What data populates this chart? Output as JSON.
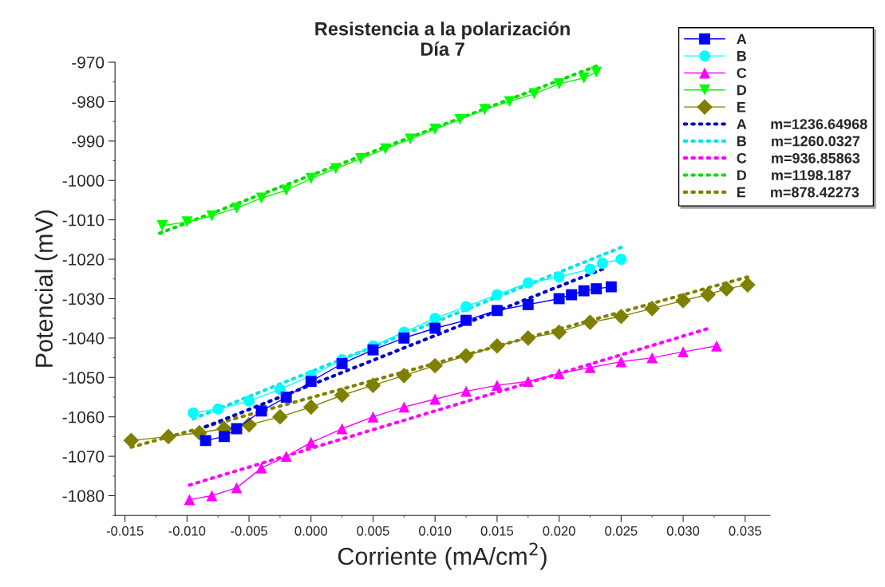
{
  "chart_data": {
    "type": "line",
    "title": "Resistencia a la polarización\nDía 7",
    "xlabel": "Corriente (mA/cm$^{2}$)",
    "ylabel": "Potencial (mV)",
    "xlim": [
      -0.0158,
      0.037
    ],
    "ylim": [
      -1085,
      -970
    ],
    "xticks": [
      {
        "value": -0.015,
        "label": "-0.015"
      },
      {
        "value": -0.01,
        "label": "-0.010"
      },
      {
        "value": -0.005,
        "label": "-0.005"
      },
      {
        "value": 0.0,
        "label": "0.000"
      },
      {
        "value": 0.005,
        "label": "0.005"
      },
      {
        "value": 0.01,
        "label": "0.010"
      },
      {
        "value": 0.015,
        "label": "0.015"
      },
      {
        "value": 0.02,
        "label": "0.020"
      },
      {
        "value": 0.025,
        "label": "0.025"
      },
      {
        "value": 0.03,
        "label": "0.030"
      },
      {
        "value": 0.035,
        "label": "0.035"
      }
    ],
    "yticks": [
      -970,
      -980,
      -990,
      -1000,
      -1010,
      -1020,
      -1030,
      -1040,
      -1050,
      -1060,
      -1070,
      -1080
    ],
    "grid": false,
    "legend": "top right",
    "line_style": "solid",
    "series": [
      {
        "name": "A",
        "color": "#0000ff",
        "marker": "square",
        "x": [
          -0.0085,
          -0.007,
          -0.006,
          -0.004,
          -0.002,
          0.0,
          0.0025,
          0.005,
          0.0075,
          0.01,
          0.0125,
          0.015,
          0.0175,
          0.02,
          0.021,
          0.022,
          0.023,
          0.0242
        ],
        "values": [
          -1066,
          -1065,
          -1063,
          -1058.5,
          -1055,
          -1051,
          -1046.5,
          -1043,
          -1040,
          -1037.5,
          -1035.5,
          -1033,
          -1031.5,
          -1030,
          -1029,
          -1028,
          -1027.5,
          -1027
        ]
      },
      {
        "name": "B",
        "color": "#00ffff",
        "marker": "circle",
        "x": [
          -0.0095,
          -0.0075,
          -0.005,
          -0.0025,
          0.0,
          0.0025,
          0.005,
          0.0075,
          0.01,
          0.0125,
          0.015,
          0.0175,
          0.02,
          0.0225,
          0.0235,
          0.025
        ],
        "values": [
          -1059,
          -1058,
          -1056,
          -1053,
          -1049.5,
          -1045.5,
          -1042,
          -1038.5,
          -1035,
          -1032,
          -1029,
          -1026,
          -1024.5,
          -1022.5,
          -1021,
          -1020
        ]
      },
      {
        "name": "C",
        "color": "#ff00ff",
        "marker": "triangle",
        "x": [
          -0.0098,
          -0.008,
          -0.006,
          -0.004,
          -0.002,
          0.0,
          0.0025,
          0.005,
          0.0075,
          0.01,
          0.0125,
          0.015,
          0.0175,
          0.02,
          0.0225,
          0.025,
          0.0275,
          0.03,
          0.0327
        ],
        "values": [
          -1081,
          -1080,
          -1078,
          -1073,
          -1070,
          -1066.5,
          -1063,
          -1060,
          -1057.5,
          -1055.5,
          -1053.5,
          -1052,
          -1051,
          -1049,
          -1047.5,
          -1046,
          -1045,
          -1043.5,
          -1042
        ]
      },
      {
        "name": "D",
        "color": "#00ff00",
        "marker": "triangle_down",
        "x": [
          -0.012,
          -0.01,
          -0.008,
          -0.006,
          -0.004,
          -0.002,
          0.0,
          0.002,
          0.004,
          0.006,
          0.008,
          0.01,
          0.012,
          0.014,
          0.016,
          0.018,
          0.02,
          0.022,
          0.023
        ],
        "values": [
          -1011.5,
          -1010.5,
          -1009,
          -1007,
          -1004.5,
          -1002.5,
          -999.5,
          -997,
          -994.5,
          -992,
          -989.5,
          -987,
          -984.5,
          -982,
          -980,
          -978,
          -975.5,
          -974,
          -972.5
        ]
      },
      {
        "name": "E",
        "color": "#808000",
        "marker": "diamond",
        "x": [
          -0.0145,
          -0.0115,
          -0.009,
          -0.007,
          -0.005,
          -0.0025,
          0.0,
          0.0025,
          0.005,
          0.0075,
          0.01,
          0.0125,
          0.015,
          0.0175,
          0.02,
          0.0225,
          0.025,
          0.0275,
          0.03,
          0.032,
          0.0335,
          0.0352
        ],
        "values": [
          -1066,
          -1065,
          -1064,
          -1063,
          -1062,
          -1060,
          -1057.5,
          -1054.5,
          -1052,
          -1049.5,
          -1047,
          -1044.5,
          -1042,
          -1040,
          -1038.5,
          -1036,
          -1034.5,
          -1032.5,
          -1030.5,
          -1029,
          -1027.5,
          -1026.5
        ]
      },
      {
        "name": "A      m=1236.64968",
        "color": "#0000cc",
        "marker": "none",
        "line_style": "dotted",
        "x": [
          -0.0085,
          0.0235
        ],
        "values": [
          -1062.5,
          -1022.5
        ]
      },
      {
        "name": "B      m=1260.0327",
        "color": "#00e5e5",
        "marker": "none",
        "line_style": "dotted",
        "x": [
          -0.0095,
          0.025
        ],
        "values": [
          -1060.5,
          -1017
        ]
      },
      {
        "name": "C      m=936.85863",
        "color": "#ff00ff",
        "marker": "none",
        "line_style": "dotted",
        "x": [
          -0.0098,
          0.0319
        ],
        "values": [
          -1077.3,
          -1037.7
        ]
      },
      {
        "name": "D      m=1198.187",
        "color": "#00dd00",
        "marker": "none",
        "line_style": "dotted",
        "x": [
          -0.0122,
          0.023
        ],
        "values": [
          -1013.4,
          -971
        ]
      },
      {
        "name": "E      m=878.42273",
        "color": "#808000",
        "marker": "none",
        "line_style": "dotted",
        "x": [
          -0.0145,
          0.0352
        ],
        "values": [
          -1067.7,
          -1024.5
        ]
      }
    ]
  }
}
